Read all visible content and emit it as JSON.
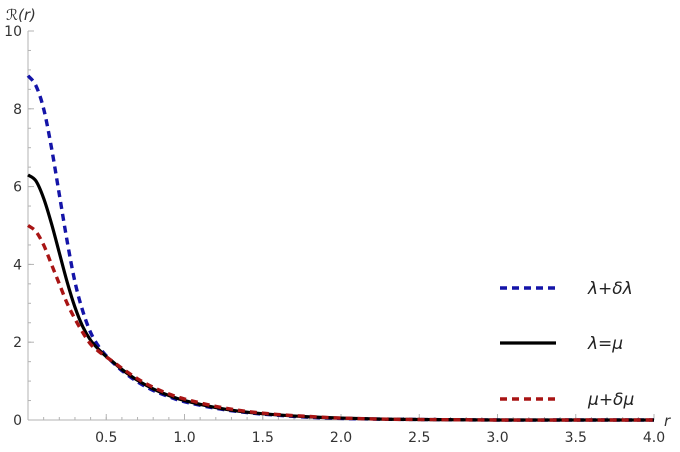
{
  "chart_data": {
    "type": "line",
    "title": "",
    "xlabel": "r",
    "ylabel": "ℛ(r)",
    "xlim": [
      0,
      4
    ],
    "ylim": [
      0,
      10
    ],
    "xticks": [
      0.5,
      1.0,
      1.5,
      2.0,
      2.5,
      3.0,
      3.5,
      4.0
    ],
    "xtick_labels": [
      "0.5",
      "1.0",
      "1.5",
      "2.0",
      "2.5",
      "3.0",
      "3.5",
      "4.0"
    ],
    "yticks": [
      0,
      2,
      4,
      6,
      8,
      10
    ],
    "ytick_labels": [
      "0",
      "2",
      "4",
      "6",
      "8",
      "10"
    ],
    "grid": false,
    "legend_position": "right",
    "x": [
      0,
      0.05,
      0.1,
      0.15,
      0.2,
      0.25,
      0.3,
      0.35,
      0.4,
      0.45,
      0.5,
      0.55,
      0.6,
      0.7,
      0.8,
      0.9,
      1.0,
      1.2,
      1.4,
      1.6,
      1.8,
      2.0,
      2.3,
      2.6,
      3.0,
      3.5,
      4.0
    ],
    "series": [
      {
        "name": "λ+δλ",
        "color": "#1414a8",
        "style": "dashed",
        "values": [
          8.85,
          8.6,
          8.0,
          7.0,
          5.8,
          4.6,
          3.55,
          2.8,
          2.25,
          1.9,
          1.65,
          1.45,
          1.27,
          0.98,
          0.76,
          0.6,
          0.47,
          0.3,
          0.19,
          0.12,
          0.07,
          0.04,
          0.02,
          0.01,
          0.0,
          0.0,
          0.0
        ]
      },
      {
        "name": "λ=μ",
        "color": "#000000",
        "style": "solid",
        "values": [
          6.3,
          6.15,
          5.7,
          5.05,
          4.3,
          3.55,
          2.9,
          2.4,
          2.05,
          1.82,
          1.63,
          1.47,
          1.3,
          1.02,
          0.8,
          0.63,
          0.5,
          0.32,
          0.2,
          0.13,
          0.08,
          0.05,
          0.02,
          0.01,
          0.0,
          0.0,
          0.0
        ]
      },
      {
        "name": "μ+δμ",
        "color": "#a81414",
        "style": "dashed",
        "values": [
          5.0,
          4.85,
          4.5,
          4.0,
          3.5,
          3.0,
          2.6,
          2.25,
          1.95,
          1.77,
          1.62,
          1.48,
          1.33,
          1.06,
          0.84,
          0.67,
          0.54,
          0.35,
          0.22,
          0.14,
          0.09,
          0.05,
          0.02,
          0.01,
          0.0,
          0.0,
          0.0
        ]
      }
    ]
  }
}
